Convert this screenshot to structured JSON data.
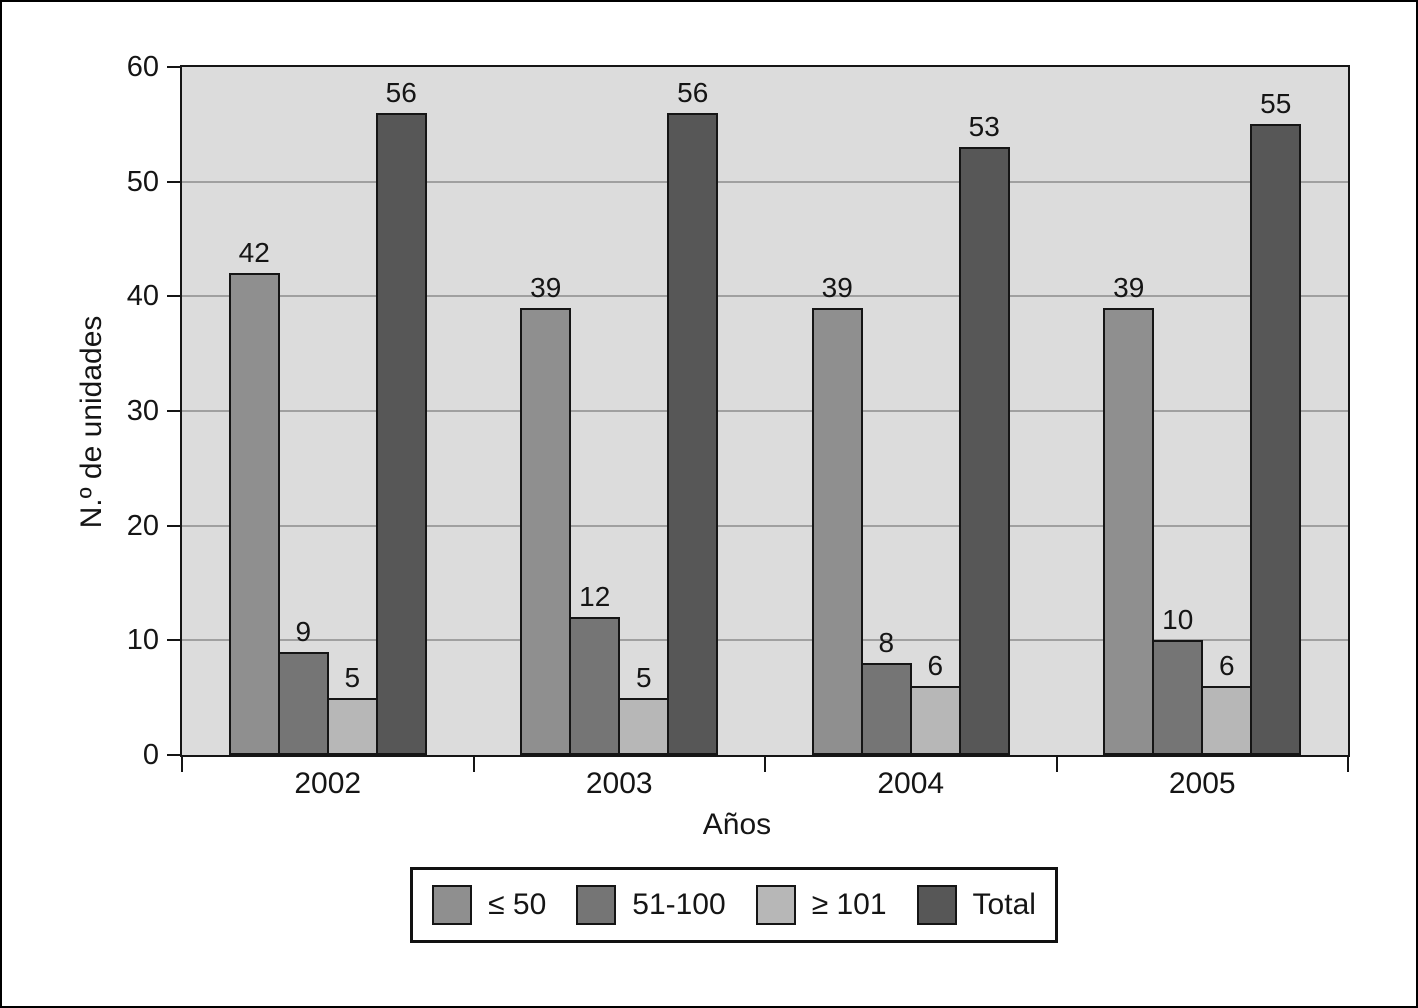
{
  "figure": {
    "background": "#ffffff",
    "frame_border_color": "#000000"
  },
  "chart_data": {
    "type": "bar",
    "title": "",
    "categories": [
      "2002",
      "2003",
      "2004",
      "2005"
    ],
    "series": [
      {
        "name": "≤ 50",
        "color": "#8f8f8f",
        "values": [
          42,
          39,
          39,
          39
        ]
      },
      {
        "name": "51-100",
        "color": "#757575",
        "values": [
          9,
          12,
          8,
          10
        ]
      },
      {
        "name": "≥ 101",
        "color": "#b7b7b7",
        "values": [
          5,
          5,
          6,
          6
        ]
      },
      {
        "name": "Total",
        "color": "#575757",
        "values": [
          56,
          56,
          53,
          55
        ]
      }
    ],
    "bar_value_labels": [
      [
        "42",
        "39",
        "39",
        "39"
      ],
      [
        "9",
        "12",
        "8",
        "10"
      ],
      [
        "5",
        "5",
        "6",
        "6"
      ],
      [
        "56",
        "56",
        "53",
        "55"
      ]
    ],
    "xlabel": "Años",
    "ylabel": "N.º de unidades",
    "ylim": [
      0,
      60
    ],
    "yticks": [
      "0",
      "10",
      "20",
      "30",
      "40",
      "50",
      "60"
    ],
    "ytick_step": 10,
    "grid": true,
    "grid_color": "#a0a0a0",
    "plot_background": "#dcdcdc",
    "axis_color": "#151515",
    "legend_position": "bottom"
  }
}
